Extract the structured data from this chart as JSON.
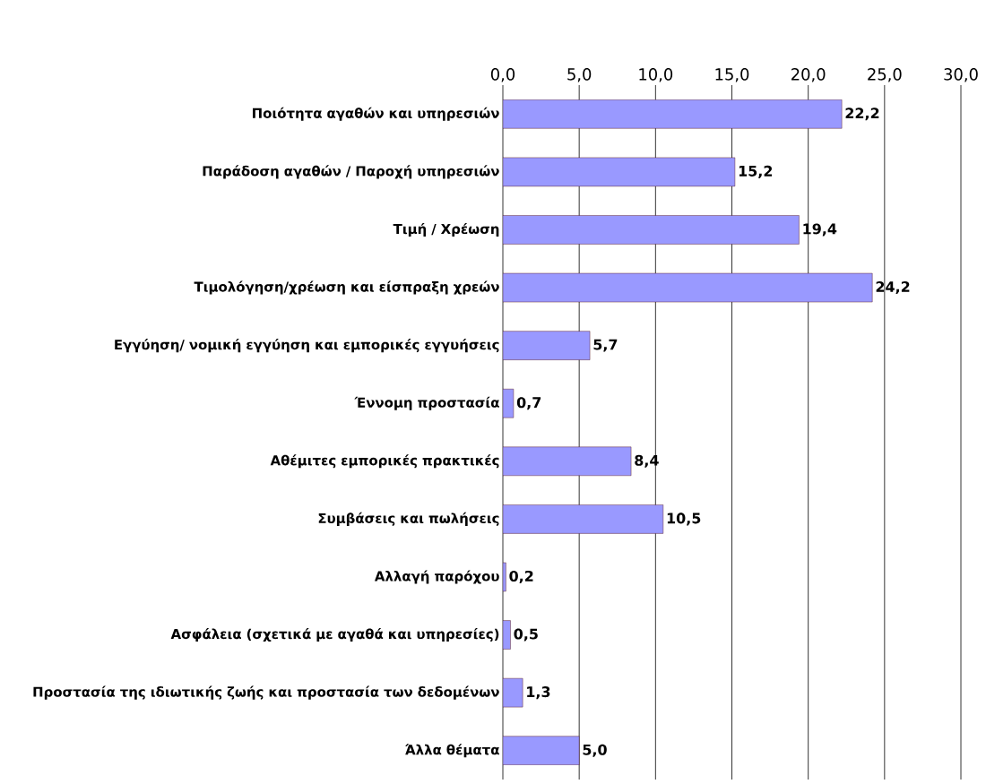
{
  "chart_data": {
    "type": "bar",
    "orientation": "horizontal",
    "categories": [
      "Ποιότητα αγαθών και υπηρεσιών",
      "Παράδοση αγαθών / Παροχή υπηρεσιών",
      "Τιμή / Χρέωση",
      "Τιμολόγηση/χρέωση και είσπραξη χρεών",
      "Εγγύηση/ νομική εγγύηση και εμπορικές εγγυήσεις",
      "Έννομη προστασία",
      "Αθέμιτες εμπορικές πρακτικές",
      "Συμβάσεις και πωλήσεις",
      "Αλλαγή παρόχου",
      "Ασφάλεια (σχετικά με αγαθά και υπηρεσίες)",
      "Προστασία της ιδιωτικής ζωής και προστασία των δεδομένων",
      "Άλλα θέματα"
    ],
    "values": [
      22.2,
      15.2,
      19.4,
      24.2,
      5.7,
      0.7,
      8.4,
      10.5,
      0.2,
      0.5,
      1.3,
      5.0
    ],
    "value_labels": [
      "22,2",
      "15,2",
      "19,4",
      "24,2",
      "5,7",
      "0,7",
      "8,4",
      "10,5",
      "0,2",
      "0,5",
      "1,3",
      "5,0"
    ],
    "color": "#9999ff",
    "xlim": [
      0,
      30
    ],
    "xticks": [
      {
        "value": 0,
        "label": "0,0"
      },
      {
        "value": 5,
        "label": "5,0"
      },
      {
        "value": 10,
        "label": "10,0"
      },
      {
        "value": 15,
        "label": "15,0"
      },
      {
        "value": 20,
        "label": "20,0"
      },
      {
        "value": 25,
        "label": "25,0"
      },
      {
        "value": 30,
        "label": "30,0"
      }
    ],
    "grid": "x"
  }
}
